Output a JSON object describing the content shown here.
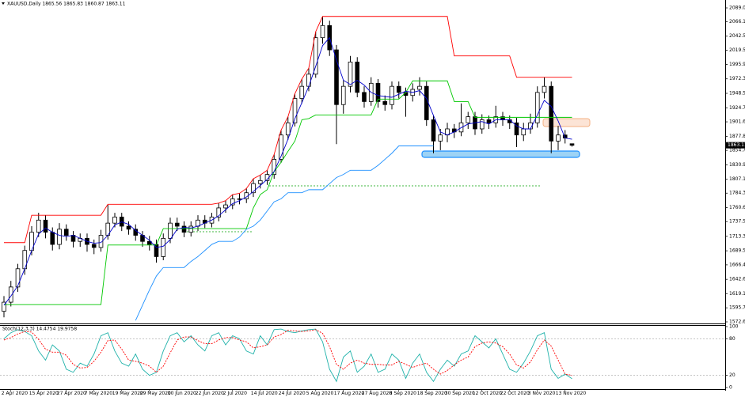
{
  "chart_data": [
    {
      "type": "candlestick",
      "title": "XAUUSD,Daily  1865.56 1865.83 1860.87 1863.11",
      "categories": [
        null,
        "2 Apr 2020",
        null,
        null,
        null,
        "15 Apr 2020",
        null,
        null,
        null,
        "27 Apr 2020",
        null,
        null,
        null,
        "7 May 2020",
        null,
        null,
        null,
        "19 May 2020",
        null,
        null,
        null,
        "29 May 2020",
        null,
        null,
        null,
        "10 Jun 2020",
        null,
        null,
        null,
        "22 Jun 2020",
        null,
        null,
        null,
        "2 Jul 2020",
        null,
        null,
        null,
        "14 Jul 2020",
        null,
        null,
        null,
        "24 Jul 2020",
        null,
        null,
        null,
        "5 Aug 2020",
        null,
        null,
        null,
        "17 Aug 2020",
        null,
        null,
        null,
        "27 Aug 2020",
        null,
        null,
        null,
        "8 Sep 2020",
        null,
        null,
        null,
        "18 Sep 2020",
        null,
        null,
        null,
        "30 Sep 2020",
        null,
        null,
        null,
        "12 Oct 2020",
        null,
        null,
        null,
        "22 Oct 2020",
        null,
        null,
        null,
        "3 Nov 2020",
        null,
        null,
        null,
        "13 Nov 2020",
        null
      ],
      "open": [
        1590,
        1605,
        1630,
        1660,
        1690,
        1720,
        1740,
        1720,
        1700,
        1725,
        1715,
        1705,
        1710,
        1700,
        1695,
        1715,
        1735,
        1745,
        1730,
        1725,
        1715,
        1705,
        1700,
        1680,
        1710,
        1735,
        1730,
        1720,
        1730,
        1740,
        1735,
        1745,
        1760,
        1765,
        1775,
        1775,
        1785,
        1800,
        1805,
        1815,
        1840,
        1880,
        1900,
        1940,
        1960,
        1980,
        2040,
        2060,
        2020,
        1930,
        1960,
        2000,
        1950,
        1935,
        1965,
        1935,
        1930,
        1960,
        1950,
        1945,
        1955,
        1960,
        1905,
        1870,
        1880,
        1890,
        1885,
        1900,
        1910,
        1890,
        1905,
        1900,
        1910,
        1905,
        1900,
        1880,
        1890,
        1900,
        1950,
        1960,
        1870,
        1880,
        1865.56
      ],
      "high": [
        1615,
        1640,
        1668,
        1698,
        1730,
        1752,
        1748,
        1728,
        1735,
        1733,
        1722,
        1718,
        1718,
        1708,
        1724,
        1765,
        1752,
        1752,
        1738,
        1733,
        1722,
        1714,
        1708,
        1718,
        1744,
        1744,
        1738,
        1738,
        1748,
        1748,
        1752,
        1768,
        1772,
        1782,
        1784,
        1792,
        1808,
        1814,
        1822,
        1848,
        1888,
        1910,
        1948,
        1972,
        1990,
        2050,
        2075,
        2068,
        2028,
        1970,
        2010,
        2008,
        1960,
        1975,
        1972,
        1945,
        1968,
        1968,
        1958,
        1965,
        1975,
        1968,
        1912,
        1890,
        1900,
        1898,
        1932,
        1918,
        1918,
        1914,
        1912,
        1928,
        1918,
        1912,
        1908,
        1900,
        1915,
        1960,
        1975,
        1968,
        1895,
        1888,
        1865.83
      ],
      "low": [
        1580,
        1598,
        1622,
        1650,
        1682,
        1712,
        1710,
        1690,
        1692,
        1706,
        1695,
        1696,
        1688,
        1684,
        1688,
        1708,
        1728,
        1722,
        1716,
        1706,
        1696,
        1690,
        1670,
        1674,
        1702,
        1722,
        1712,
        1713,
        1722,
        1727,
        1728,
        1738,
        1752,
        1758,
        1766,
        1768,
        1778,
        1792,
        1798,
        1808,
        1834,
        1872,
        1894,
        1932,
        1952,
        1974,
        2030,
        2010,
        1865,
        1915,
        1950,
        1942,
        1925,
        1928,
        1925,
        1920,
        1922,
        1940,
        1910,
        1935,
        1945,
        1895,
        1850,
        1855,
        1868,
        1875,
        1878,
        1890,
        1880,
        1882,
        1890,
        1892,
        1895,
        1890,
        1860,
        1870,
        1882,
        1892,
        1940,
        1850,
        1855,
        1866,
        1860.87
      ],
      "close": [
        1605,
        1630,
        1660,
        1690,
        1720,
        1740,
        1720,
        1700,
        1725,
        1715,
        1705,
        1710,
        1700,
        1695,
        1715,
        1735,
        1745,
        1730,
        1725,
        1715,
        1705,
        1700,
        1680,
        1710,
        1735,
        1730,
        1720,
        1730,
        1740,
        1735,
        1745,
        1760,
        1765,
        1775,
        1775,
        1785,
        1800,
        1805,
        1815,
        1840,
        1880,
        1900,
        1940,
        1960,
        1980,
        2040,
        2060,
        2020,
        1930,
        1960,
        2000,
        1950,
        1935,
        1965,
        1935,
        1930,
        1960,
        1950,
        1945,
        1955,
        1960,
        1905,
        1870,
        1880,
        1890,
        1885,
        1900,
        1910,
        1890,
        1905,
        1900,
        1910,
        1905,
        1900,
        1880,
        1890,
        1900,
        1950,
        1960,
        1870,
        1880,
        1875,
        1863.11
      ],
      "overlays": [
        {
          "color": "#ff0000",
          "values": [
            1703,
            1703,
            1703,
            1703,
            1748,
            1748,
            1748,
            1748,
            1748,
            1748,
            1748,
            1748,
            1748,
            1748,
            1748,
            1766,
            1766,
            1766,
            1766,
            1766,
            1766,
            1766,
            1766,
            1766,
            1766,
            1766,
            1766,
            1766,
            1766,
            1766,
            1766,
            1768,
            1772,
            1782,
            1784,
            1792,
            1808,
            1814,
            1822,
            1848,
            1888,
            1910,
            1948,
            1972,
            1990,
            2050,
            2075,
            2075,
            2075,
            2075,
            2075,
            2075,
            2075,
            2075,
            2075,
            2075,
            2075,
            2075,
            2075,
            2075,
            2075,
            2075,
            2075,
            2075,
            2075,
            2010,
            2010,
            2010,
            2010,
            2010,
            2010,
            2010,
            2010,
            2010,
            1975,
            1975,
            1975,
            1975,
            1975,
            1975,
            1975,
            1975,
            1975
          ]
        },
        {
          "color": "#00c800",
          "values": [
            1601,
            1601,
            1601,
            1601,
            1601,
            1601,
            1601,
            1601,
            1601,
            1601,
            1601,
            1601,
            1601,
            1601,
            1601,
            1699,
            1699,
            1699,
            1699,
            1699,
            1699,
            1699,
            1699,
            1726,
            1726,
            1726,
            1726,
            1726,
            1726,
            1726,
            1726,
            1726,
            1726,
            1726,
            1726,
            1726,
            1760,
            1782,
            1790,
            1820,
            1835,
            1853,
            1870,
            1905,
            1907,
            1913,
            1913,
            1913,
            1913,
            1913,
            1913,
            1913,
            1913,
            1913,
            1939,
            1939,
            1939,
            1939,
            1950,
            1969,
            1969,
            1969,
            1969,
            1969,
            1969,
            1935,
            1935,
            1935,
            1909,
            1909,
            1909,
            1909,
            1909,
            1909,
            1909,
            1909,
            1909,
            1909,
            1909,
            1909,
            1909,
            1909,
            1909
          ]
        },
        {
          "color": "#1e90ff",
          "values": [
            null,
            null,
            null,
            null,
            null,
            null,
            null,
            null,
            null,
            null,
            null,
            null,
            null,
            null,
            null,
            null,
            null,
            null,
            null,
            1575,
            1600,
            1625,
            1648,
            1662,
            1662,
            1662,
            1662,
            1672,
            1680,
            1690,
            1700,
            1705,
            1705,
            1705,
            1712,
            1725,
            1730,
            1740,
            1755,
            1770,
            1775,
            1785,
            1785,
            1785,
            1790,
            1790,
            1790,
            1800,
            1810,
            1815,
            1822,
            1822,
            1822,
            1822,
            1830,
            1840,
            1850,
            1862,
            1862,
            1862,
            1862,
            1862,
            1862,
            null,
            null,
            null,
            null,
            null,
            null,
            null,
            null,
            null,
            null,
            null,
            null,
            null,
            null,
            null,
            null,
            null,
            null,
            null,
            null
          ]
        },
        {
          "color": "#0000cd",
          "values": [
            1600,
            1615,
            1632,
            1660,
            1690,
            1717,
            1727,
            1720,
            1715,
            1713,
            1715,
            1710,
            1705,
            1702,
            1703,
            1715,
            1732,
            1737,
            1733,
            1723,
            1715,
            1707,
            1695,
            1697,
            1708,
            1725,
            1728,
            1727,
            1730,
            1735,
            1740,
            1747,
            1757,
            1767,
            1772,
            1778,
            1787,
            1797,
            1807,
            1820,
            1845,
            1873,
            1907,
            1933,
            1960,
            1993,
            2027,
            2040,
            2003,
            1970,
            1963,
            1970,
            1962,
            1950,
            1945,
            1943,
            1942,
            1947,
            1952,
            1950,
            1953,
            1940,
            1912,
            1885,
            1880,
            1885,
            1892,
            1898,
            1900,
            1902,
            1898,
            1905,
            1905,
            1905,
            1895,
            1890,
            1890,
            1913,
            1937,
            1927,
            1903,
            1875,
            1873
          ]
        }
      ],
      "ylim": [
        1572.6,
        2089
      ],
      "yticks": [
        {
          "value": 1572.6,
          "label": "1572.60"
        },
        {
          "value": 1595.7,
          "label": "1595.70"
        },
        {
          "value": 1619.1,
          "label": "1619.10"
        },
        {
          "value": 1642.6,
          "label": "1642.60"
        },
        {
          "value": 1666.4,
          "label": "1666.40"
        },
        {
          "value": 1689.5,
          "label": "1689.50"
        },
        {
          "value": 1713.3,
          "label": "1713.30"
        },
        {
          "value": 1737.5,
          "label": "1737.50"
        },
        {
          "value": 1760.6,
          "label": "1760.60"
        },
        {
          "value": 1784.3,
          "label": "1784.30"
        },
        {
          "value": 1807.1,
          "label": "1807.10"
        },
        {
          "value": 1830.9,
          "label": "1830.90"
        },
        {
          "value": 1854.7,
          "label": "1854.70"
        },
        {
          "value": 1877.8,
          "label": "1877.80"
        },
        {
          "value": 1901.6,
          "label": "1901.60"
        },
        {
          "value": 1924.7,
          "label": "1924.70"
        },
        {
          "value": 1948.5,
          "label": "1948.50"
        },
        {
          "value": 1972.3,
          "label": "1972.30"
        },
        {
          "value": 1995.9,
          "label": "1995.90"
        },
        {
          "value": 2019.5,
          "label": "2019.50"
        },
        {
          "value": 2042.5,
          "label": "2042.50"
        },
        {
          "value": 2066.1,
          "label": "2066.10"
        },
        {
          "value": 2089,
          "label": "2089.00"
        }
      ],
      "last_price": 1863.11
    },
    {
      "type": "line",
      "title": "Stoch(12,3,3) 14.4754 19.9758",
      "series": [
        {
          "color": "#20b2aa",
          "values": [
            80,
            90,
            95,
            92,
            85,
            60,
            45,
            70,
            60,
            30,
            25,
            40,
            35,
            55,
            85,
            90,
            60,
            40,
            35,
            55,
            30,
            20,
            25,
            60,
            85,
            90,
            75,
            85,
            70,
            60,
            85,
            90,
            70,
            85,
            80,
            60,
            55,
            85,
            70,
            95,
            96,
            92,
            90,
            93,
            95,
            96,
            75,
            30,
            10,
            50,
            60,
            25,
            35,
            55,
            25,
            30,
            55,
            45,
            15,
            40,
            55,
            25,
            10,
            30,
            45,
            35,
            55,
            60,
            85,
            75,
            65,
            80,
            55,
            30,
            25,
            40,
            60,
            85,
            90,
            30,
            15,
            22,
            14.4754
          ]
        },
        {
          "color": "#ff0000",
          "dash": true,
          "values": [
            78,
            82,
            88,
            92,
            91,
            79,
            63,
            58,
            58,
            53,
            38,
            32,
            33,
            43,
            58,
            77,
            78,
            63,
            45,
            43,
            40,
            35,
            25,
            35,
            57,
            78,
            83,
            83,
            77,
            72,
            72,
            78,
            82,
            82,
            78,
            75,
            65,
            67,
            70,
            83,
            87,
            94,
            93,
            92,
            93,
            95,
            89,
            67,
            38,
            30,
            40,
            45,
            40,
            38,
            38,
            37,
            37,
            43,
            38,
            33,
            37,
            40,
            30,
            22,
            28,
            37,
            45,
            50,
            67,
            73,
            75,
            73,
            67,
            55,
            37,
            32,
            42,
            62,
            78,
            68,
            45,
            22,
            19.9758
          ]
        }
      ],
      "ylim": [
        0,
        100
      ],
      "yticks": [
        0,
        20,
        80,
        100
      ]
    }
  ]
}
